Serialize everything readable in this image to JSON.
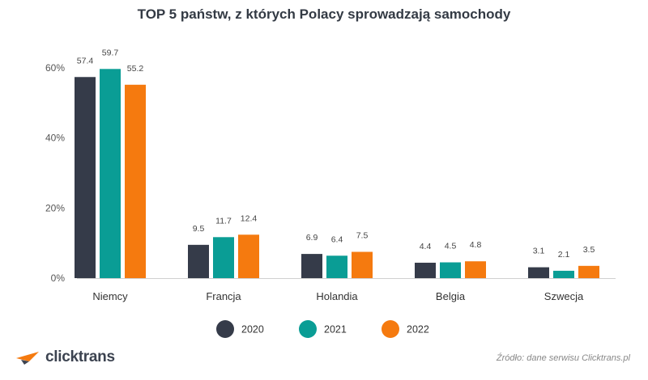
{
  "title": "TOP 5 państw, z których Polacy sprowadzają samochody",
  "source": "Źródło: dane serwisu Clicktrans.pl",
  "logo_text": "clicktrans",
  "colors": {
    "2020": "#353b49",
    "2021": "#0a9d95",
    "2022": "#f57a0f",
    "logo_accent": "#f57a0f"
  },
  "chart_data": {
    "type": "bar",
    "title": "TOP 5 państw, z których Polacy sprowadzają samochody",
    "xlabel": "",
    "ylabel": "",
    "ylim": [
      0,
      60
    ],
    "yticks": [
      0,
      20,
      40,
      60
    ],
    "ytick_labels": [
      "0%",
      "20%",
      "40%",
      "60%"
    ],
    "categories": [
      "Niemcy",
      "Francja",
      "Holandia",
      "Belgia",
      "Szwecja"
    ],
    "series": [
      {
        "name": "2020",
        "values": [
          57.4,
          9.5,
          6.9,
          4.4,
          3.1
        ]
      },
      {
        "name": "2021",
        "values": [
          59.7,
          11.7,
          6.4,
          4.5,
          2.1
        ]
      },
      {
        "name": "2022",
        "values": [
          55.2,
          12.4,
          7.5,
          4.8,
          3.5
        ]
      }
    ],
    "legend": "bottom",
    "grid": false
  }
}
